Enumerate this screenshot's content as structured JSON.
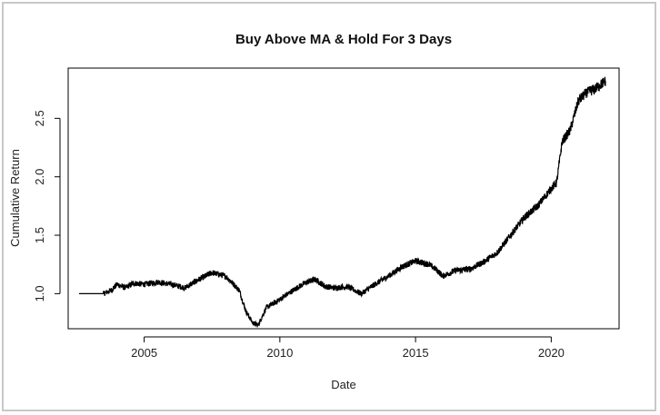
{
  "chart_data": {
    "type": "line",
    "title": "Buy Above MA & Hold For 3 Days",
    "xlabel": "Date",
    "ylabel": "Cumulative Return",
    "xlim": [
      2002.2,
      2022.5
    ],
    "ylim": [
      0.7,
      2.93
    ],
    "x_ticks": [
      2005,
      2010,
      2015,
      2020
    ],
    "x_tick_labels": [
      "2005",
      "2010",
      "2015",
      "2020"
    ],
    "y_ticks": [
      1.0,
      1.5,
      2.0,
      2.5
    ],
    "y_tick_labels": [
      "1.0",
      "1.5",
      "2.0",
      "2.5"
    ],
    "grid": false,
    "line_color": "#000000",
    "series": [
      {
        "x": [
          2002.6,
          2003.0,
          2003.5,
          2003.8,
          2004.0,
          2004.3,
          2004.6,
          2005.0,
          2005.5,
          2006.0,
          2006.5,
          2007.0,
          2007.5,
          2008.0,
          2008.3,
          2008.5,
          2008.75,
          2009.0,
          2009.2,
          2009.5,
          2010.0,
          2010.3,
          2010.7,
          2011.0,
          2011.3,
          2011.7,
          2012.0,
          2012.5,
          2013.0,
          2013.5,
          2014.0,
          2014.5,
          2015.0,
          2015.5,
          2015.8,
          2016.0,
          2016.5,
          2017.0,
          2017.5,
          2018.0,
          2018.5,
          2019.0,
          2019.5,
          2020.0,
          2020.2,
          2020.4,
          2020.7,
          2021.0,
          2021.3,
          2021.6,
          2022.0
        ],
        "y": [
          1.0,
          1.0,
          1.0,
          1.03,
          1.08,
          1.05,
          1.09,
          1.08,
          1.1,
          1.08,
          1.05,
          1.12,
          1.18,
          1.15,
          1.08,
          1.03,
          0.85,
          0.75,
          0.73,
          0.88,
          0.95,
          1.0,
          1.06,
          1.1,
          1.12,
          1.06,
          1.05,
          1.06,
          1.0,
          1.08,
          1.15,
          1.23,
          1.28,
          1.25,
          1.2,
          1.15,
          1.2,
          1.21,
          1.27,
          1.35,
          1.5,
          1.65,
          1.75,
          1.9,
          1.95,
          2.3,
          2.4,
          2.65,
          2.72,
          2.75,
          2.82
        ]
      }
    ]
  }
}
